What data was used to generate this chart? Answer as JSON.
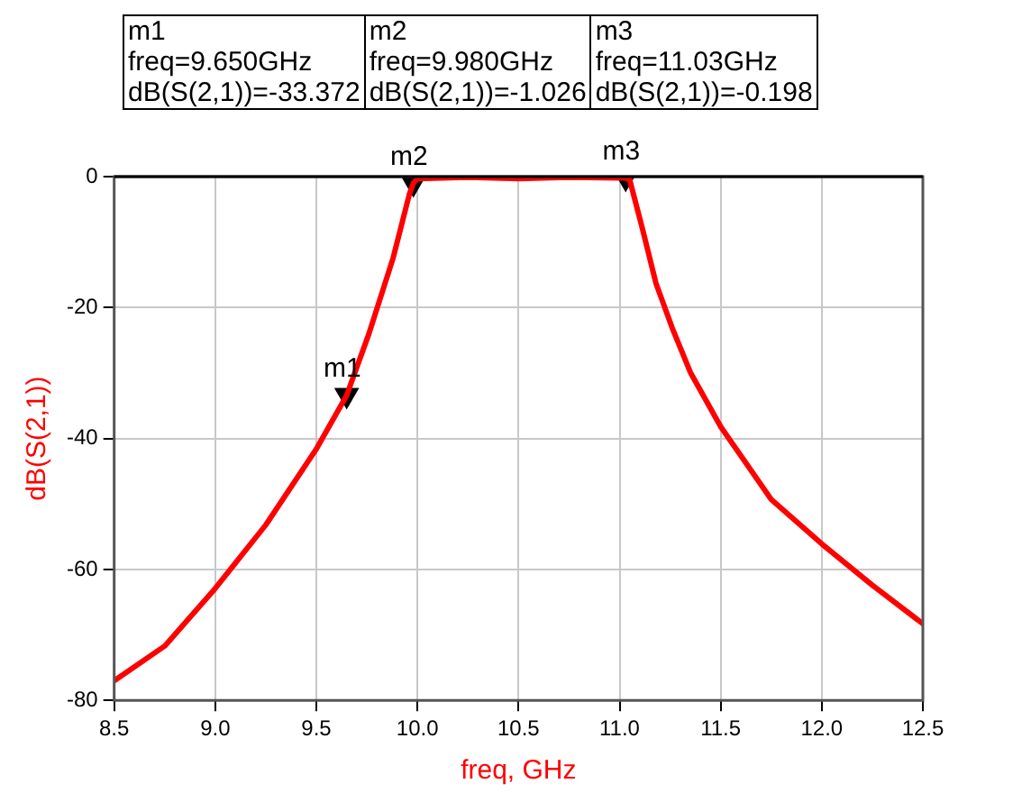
{
  "chart_data": {
    "type": "line",
    "xlabel": "freq, GHz",
    "ylabel": "dB(S(2,1))",
    "x": [
      8.5,
      8.75,
      9.0,
      9.25,
      9.5,
      9.65,
      9.76,
      9.88,
      9.96,
      9.98,
      10.0,
      10.25,
      10.5,
      10.75,
      11.0,
      11.03,
      11.05,
      11.11,
      11.18,
      11.26,
      11.35,
      11.5,
      11.75,
      12.0,
      12.25,
      12.5
    ],
    "series": [
      {
        "color": "#ff0000",
        "values": [
          -77.0,
          -71.7,
          -62.9,
          -53.2,
          -41.6,
          -33.4,
          -24.0,
          -12.4,
          -2.7,
          -1.0,
          -0.3,
          -0.1,
          -0.3,
          -0.1,
          -0.2,
          -0.2,
          -0.5,
          -7.6,
          -16.3,
          -23.1,
          -29.9,
          -38.2,
          -49.3,
          -56.1,
          -62.4,
          -68.3
        ]
      },
      {
        "type": "scatter",
        "marker": "triangle",
        "color": "#000000",
        "x": [
          9.65,
          9.98,
          11.03
        ],
        "values": [
          -33.372,
          -1.026,
          -0.198
        ]
      }
    ],
    "xlim": [
      8.5,
      12.5
    ],
    "xticks": [
      8.5,
      {
        "value": 9,
        "label": "9.0"
      },
      9.5,
      {
        "value": 10,
        "label": "10.0"
      },
      10.5,
      {
        "value": 11,
        "label": "11.0"
      },
      11.5,
      {
        "value": 12,
        "label": "12.0"
      },
      12.5
    ],
    "ylim": [
      -80,
      0
    ],
    "yticks": [
      -80,
      -60,
      -40,
      -20,
      0
    ],
    "grid": true,
    "legend": false,
    "marker": "none",
    "line_style": "solid",
    "annotations": [
      {
        "text": "m1",
        "x": 9.65,
        "y": -33.372
      },
      {
        "text": "m2",
        "x": 9.98,
        "y": -1.026
      },
      {
        "text": "m3",
        "x": 11.03,
        "y": -0.198
      },
      "m1\nfreq=9.650GHz\ndB(S(2,1))=-33.372",
      "m2\nfreq=9.980GHz\ndB(S(2,1))=-1.026",
      "m3\nfreq=11.03GHz\ndB(S(2,1))=-0.198"
    ]
  }
}
